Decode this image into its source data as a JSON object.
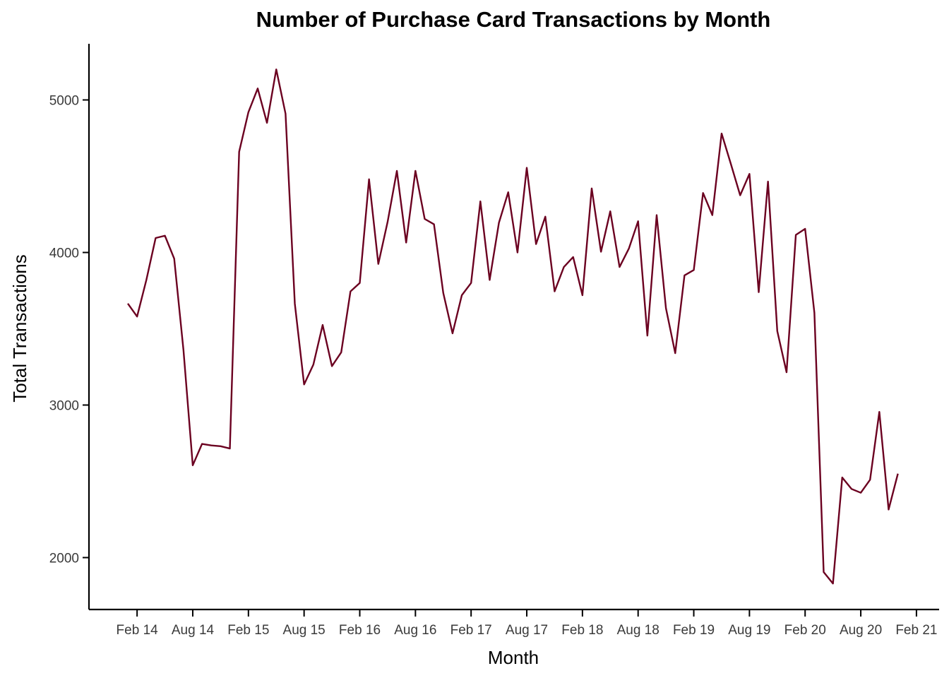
{
  "chart_data": {
    "type": "line",
    "title": "Number of Purchase Card Transactions by Month",
    "xlabel": "Month",
    "ylabel": "Total Transactions",
    "x_ticks": [
      "Feb 14",
      "Aug 14",
      "Feb 15",
      "Aug 15",
      "Feb 16",
      "Aug 16",
      "Feb 17",
      "Aug 17",
      "Feb 18",
      "Aug 18",
      "Feb 19",
      "Aug 19",
      "Feb 20",
      "Aug 20",
      "Feb 21"
    ],
    "y_ticks": [
      2000,
      3000,
      4000,
      5000
    ],
    "ylim": [
      1680,
      5380
    ],
    "grid": false,
    "legend": "none",
    "line_color": "#6b0020",
    "start_month": "Jan 14",
    "values": [
      3665,
      3580,
      3820,
      4095,
      4110,
      3960,
      3360,
      2605,
      2745,
      2735,
      2730,
      2715,
      4660,
      4920,
      5075,
      4850,
      5200,
      4910,
      3665,
      3135,
      3265,
      3525,
      3255,
      3345,
      3745,
      3800,
      4480,
      3925,
      4200,
      4535,
      4065,
      4535,
      4220,
      4185,
      3735,
      3470,
      3720,
      3800,
      4335,
      3820,
      4195,
      4395,
      4000,
      4555,
      4055,
      4235,
      3745,
      3905,
      3970,
      3720,
      4420,
      4005,
      4270,
      3905,
      4025,
      4205,
      3455,
      4245,
      3635,
      3340,
      3850,
      3885,
      4390,
      4245,
      4780,
      4580,
      4375,
      4515,
      3740,
      4465,
      3485,
      3215,
      4115,
      4155,
      3605,
      1905,
      1830,
      2525,
      2450,
      2425,
      2510,
      2955,
      2315,
      2550
    ]
  }
}
